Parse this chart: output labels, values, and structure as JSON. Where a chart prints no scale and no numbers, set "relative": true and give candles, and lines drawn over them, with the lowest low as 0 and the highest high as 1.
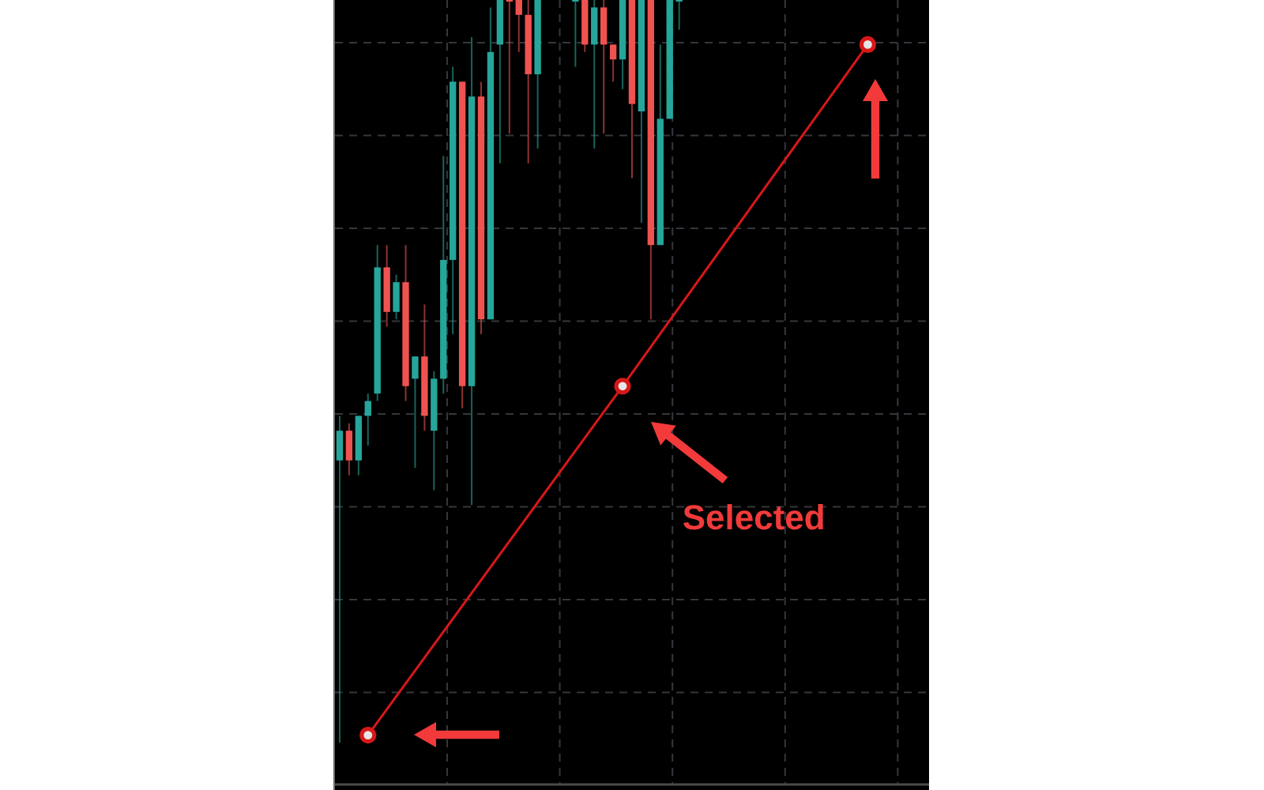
{
  "chart_data": {
    "type": "candlestick",
    "relative": true,
    "grid": true,
    "marker": "circle",
    "categories": [
      null,
      null,
      null,
      null,
      null,
      null,
      null,
      null,
      null,
      null,
      null,
      null,
      null,
      null,
      null,
      null,
      null,
      null,
      null,
      null,
      null,
      null,
      null,
      null,
      null,
      null,
      null,
      null,
      null,
      null,
      null,
      null,
      null,
      null,
      null,
      null,
      null,
      null,
      null,
      null,
      null,
      null,
      null,
      null,
      null,
      null,
      null,
      null,
      null,
      null,
      null,
      null,
      null,
      null,
      null,
      null,
      null,
      null,
      null,
      null,
      null,
      null,
      null
    ],
    "ohlc": [
      [
        0.38,
        0.44,
        0,
        0.42
      ],
      [
        0.42,
        0.43,
        0.36,
        0.38
      ],
      [
        0.38,
        0.44,
        0.36,
        0.44
      ],
      [
        0.44,
        0.47,
        0.4,
        0.46
      ],
      [
        0.47,
        0.67,
        0.46,
        0.64
      ],
      [
        0.64,
        0.67,
        0.56,
        0.58
      ],
      [
        0.58,
        0.63,
        0.57,
        0.62
      ],
      [
        0.62,
        0.67,
        0.46,
        0.48
      ],
      [
        0.49,
        0.52,
        0.37,
        0.52
      ],
      [
        0.52,
        0.59,
        0.42,
        0.44
      ],
      [
        0.42,
        0.5,
        0.34,
        0.49
      ],
      [
        0.49,
        0.79,
        0.47,
        0.65
      ],
      [
        0.65,
        0.91,
        0.55,
        0.89
      ],
      [
        0.89,
        0.89,
        0.45,
        0.48
      ],
      [
        0.48,
        0.95,
        0.32,
        0.87
      ],
      [
        0.87,
        0.89,
        0.55,
        0.57
      ],
      [
        0.57,
        0.99,
        0.57,
        0.93
      ],
      [
        0.94,
        1,
        0.78,
        1
      ],
      [
        1,
        1,
        0.82,
        1
      ],
      [
        1,
        1,
        0.93,
        0.98
      ],
      [
        0.98,
        1,
        0.78,
        0.9
      ],
      [
        0.9,
        1,
        0.8,
        1
      ],
      null,
      null,
      null,
      [
        1,
        1,
        0.91,
        1
      ],
      [
        1,
        1,
        0.93,
        0.94
      ],
      [
        0.94,
        1,
        0.8,
        0.99
      ],
      [
        0.99,
        1,
        0.82,
        0.94
      ],
      [
        0.94,
        0.94,
        0.89,
        0.92
      ],
      [
        0.92,
        1,
        0.88,
        1
      ],
      [
        1,
        1,
        0.76,
        0.86
      ],
      [
        0.85,
        1,
        0.7,
        1
      ],
      [
        1,
        1,
        0.57,
        0.67
      ],
      [
        0.67,
        0.94,
        0.67,
        0.84
      ],
      [
        0.84,
        1,
        0.84,
        1
      ],
      [
        1,
        1,
        0.96,
        1
      ],
      null,
      null,
      null,
      null,
      null,
      null,
      null,
      null,
      null,
      null,
      null,
      null,
      null,
      null,
      null,
      null,
      null,
      null,
      null,
      null,
      null,
      null,
      null,
      null,
      null,
      null
    ],
    "colors": [
      "#26a69a",
      "#ef5350",
      "#26a69a",
      "#26a69a",
      "#26a69a",
      "#ef5350",
      "#26a69a",
      "#ef5350",
      "#26a69a",
      "#ef5350",
      "#26a69a",
      "#26a69a",
      "#26a69a",
      "#ef5350",
      "#26a69a",
      "#ef5350",
      "#26a69a",
      "#26a69a",
      "#ef5350",
      "#ef5350",
      "#ef5350",
      "#26a69a",
      null,
      null,
      null,
      "#26a69a",
      "#ef5350",
      "#26a69a",
      "#ef5350",
      "#ef5350",
      "#26a69a",
      "#ef5350",
      "#26a69a",
      "#ef5350",
      "#26a69a",
      "#26a69a",
      "#26a69a",
      null,
      null,
      null,
      null,
      null,
      null,
      null,
      null,
      null,
      null,
      null,
      null,
      null,
      null,
      null,
      null,
      null,
      null,
      null,
      null,
      null,
      null,
      null,
      null,
      null,
      null
    ],
    "series": [
      {
        "type": "line",
        "color": "#d81818",
        "values": [
          null,
          null,
          null,
          0.01,
          null,
          null,
          null,
          null,
          null,
          null,
          null,
          null,
          null,
          null,
          null,
          null,
          null,
          null,
          null,
          null,
          null,
          null,
          null,
          null,
          null,
          null,
          null,
          null,
          null,
          null,
          0.48,
          null,
          null,
          null,
          null,
          null,
          null,
          null,
          null,
          null,
          null,
          null,
          null,
          null,
          null,
          null,
          null,
          null,
          null,
          null,
          null,
          null,
          null,
          null,
          null,
          null,
          0.94,
          null,
          null,
          null,
          null,
          null,
          null
        ]
      }
    ],
    "annotations": [
      "Selected"
    ]
  }
}
